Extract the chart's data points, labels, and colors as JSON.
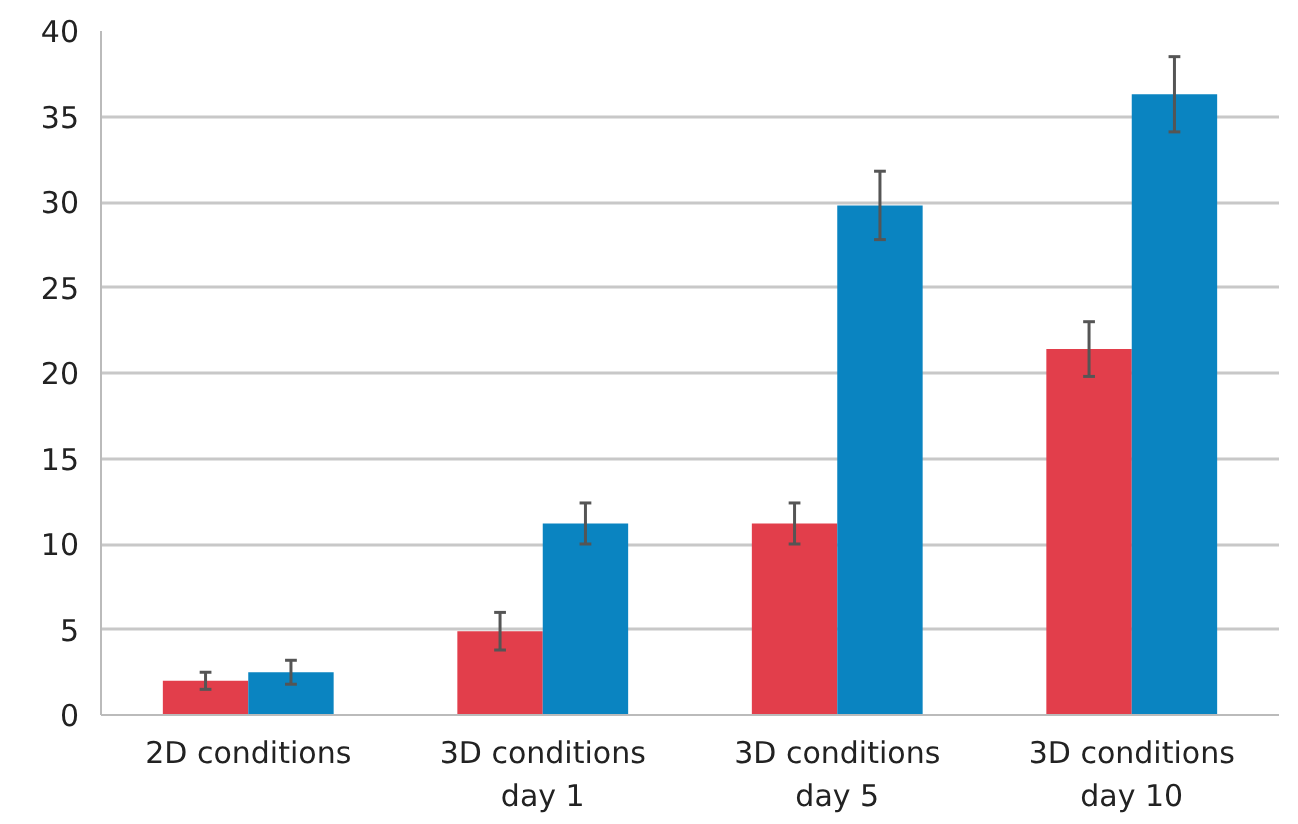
{
  "chart_data": {
    "type": "bar",
    "categories": [
      "2D conditions",
      "3D conditions\nday 1",
      "3D conditions\nday 5",
      "3D conditions\nday 10"
    ],
    "series": [
      {
        "color": "#e23e4b",
        "values": [
          2.0,
          4.9,
          11.2,
          21.4
        ],
        "errors": [
          0.5,
          1.1,
          1.2,
          1.6
        ]
      },
      {
        "color": "#0a84c1",
        "values": [
          2.5,
          11.2,
          29.8,
          36.3
        ],
        "errors": [
          0.7,
          1.2,
          2.0,
          2.2
        ]
      }
    ],
    "ylim": [
      0,
      40
    ],
    "yticks": [
      0,
      5,
      10,
      15,
      20,
      25,
      30,
      35,
      40
    ],
    "grid": "y"
  }
}
